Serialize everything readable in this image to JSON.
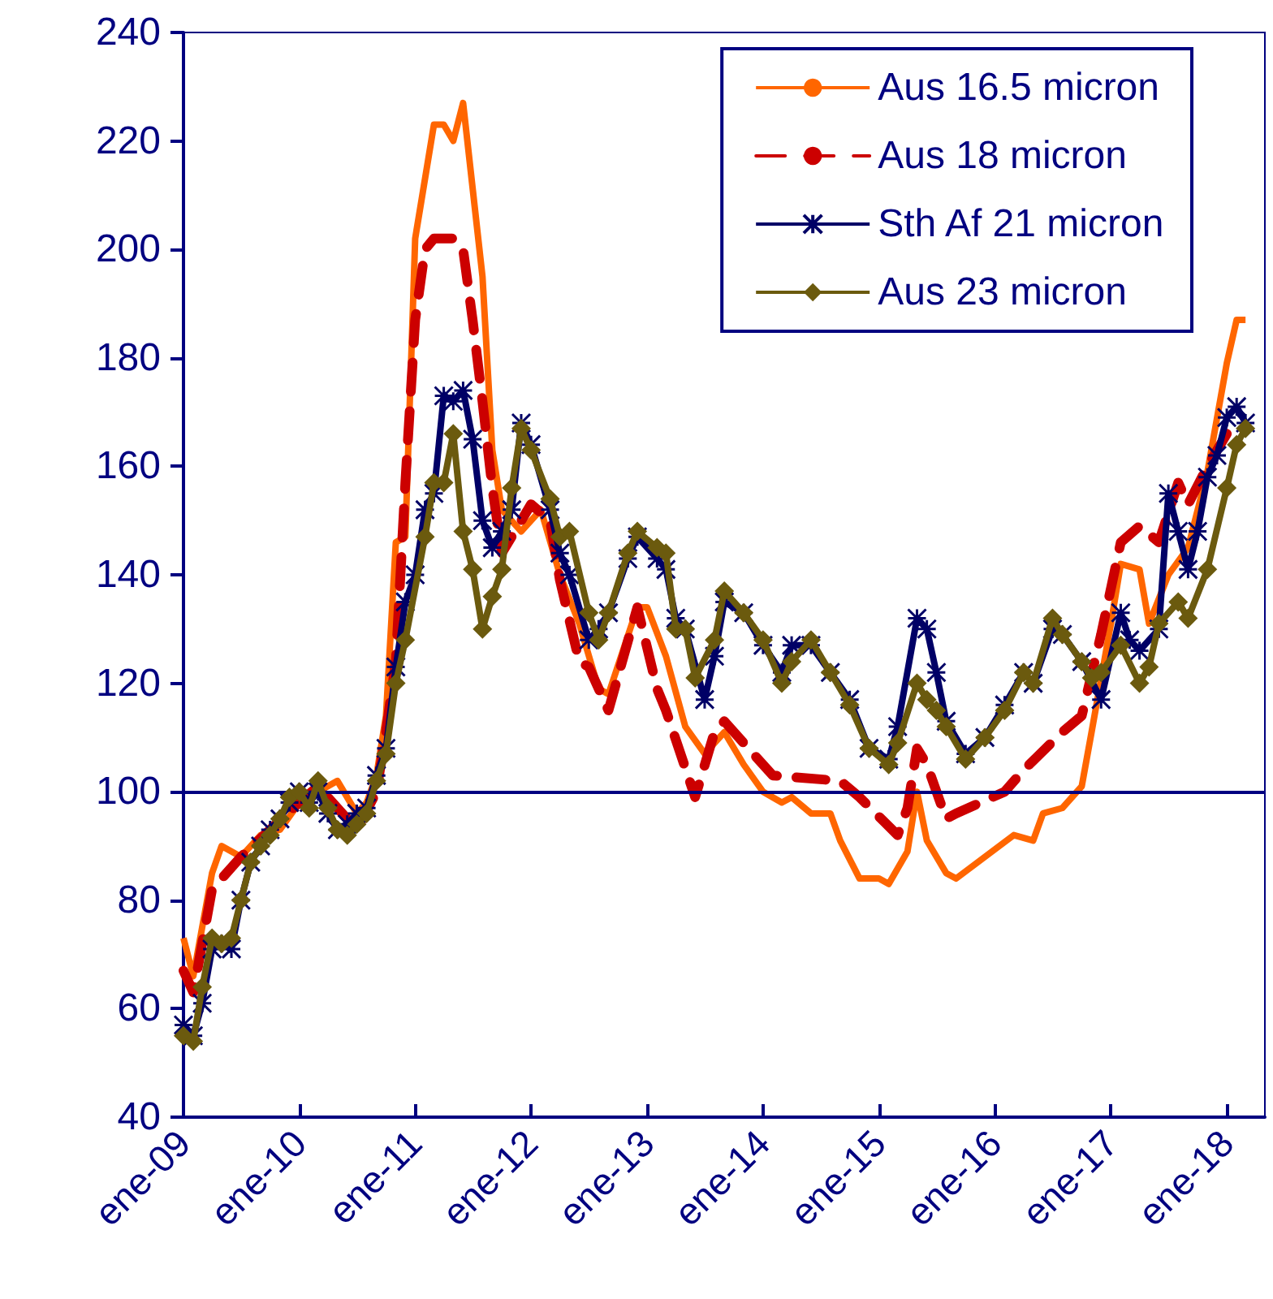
{
  "chart_data": {
    "type": "line",
    "legend": "top right",
    "grid": false,
    "xlim": [
      "2009-01",
      "2018-05"
    ],
    "xticks": [
      {
        "value": "2009-01",
        "label": "ene-09"
      },
      {
        "value": "2010-01",
        "label": "ene-10"
      },
      {
        "value": "2011-01",
        "label": "ene-11"
      },
      {
        "value": "2012-01",
        "label": "ene-12"
      },
      {
        "value": "2013-01",
        "label": "ene-13"
      },
      {
        "value": "2014-01",
        "label": "ene-14"
      },
      {
        "value": "2015-01",
        "label": "ene-15"
      },
      {
        "value": "2016-01",
        "label": "ene-16"
      },
      {
        "value": "2017-01",
        "label": "ene-17"
      },
      {
        "value": "2018-01",
        "label": "ene-18"
      }
    ],
    "ylim": [
      40,
      240
    ],
    "yticks": [
      40,
      60,
      80,
      100,
      120,
      140,
      160,
      180,
      200,
      220,
      240
    ],
    "ref_lines": [
      {
        "axis": "y",
        "value": 100,
        "color": "#000080"
      }
    ],
    "series": [
      {
        "name": "Aus 16.5 micron",
        "color": "#ff6600",
        "marker": "none",
        "line_style": "solid",
        "x": [
          "2009-01",
          "2009-02",
          "2009-04",
          "2009-05",
          "2009-07",
          "2009-09",
          "2009-11",
          "2010-01",
          "2010-03",
          "2010-05",
          "2010-07",
          "2010-08",
          "2010-09",
          "2010-10",
          "2010-11",
          "2010-12",
          "2011-01",
          "2011-03",
          "2011-04",
          "2011-05",
          "2011-06",
          "2011-08",
          "2011-09",
          "2011-10",
          "2011-12",
          "2012-02",
          "2012-04",
          "2012-06",
          "2012-08",
          "2012-09",
          "2012-12",
          "2013-01",
          "2013-03",
          "2013-05",
          "2013-07",
          "2013-09",
          "2013-11",
          "2014-01",
          "2014-03",
          "2014-04",
          "2014-06",
          "2014-08",
          "2014-09",
          "2014-11",
          "2015-01",
          "2015-02",
          "2015-04",
          "2015-05",
          "2015-06",
          "2015-08",
          "2015-09",
          "2015-12",
          "2016-03",
          "2016-05",
          "2016-06",
          "2016-08",
          "2016-10",
          "2016-11",
          "2017-01",
          "2017-02",
          "2017-04",
          "2017-05",
          "2017-07",
          "2017-09",
          "2017-11",
          "2018-01",
          "2018-02",
          "2018-03"
        ],
        "values": [
          73,
          66,
          85,
          90,
          88,
          92,
          93,
          98,
          100,
          102,
          96,
          98,
          103,
          114,
          146,
          147,
          202,
          223,
          223,
          220,
          227,
          195,
          163,
          152,
          148,
          152,
          140,
          131,
          119,
          118,
          134,
          134,
          125,
          112,
          107,
          111,
          105,
          100,
          98,
          99,
          96,
          96,
          91,
          84,
          84,
          83,
          89,
          100,
          91,
          85,
          84,
          88,
          92,
          91,
          96,
          97,
          101,
          111,
          131,
          142,
          141,
          131,
          140,
          145,
          159,
          179,
          187,
          187
        ]
      },
      {
        "name": "Aus 18 micron",
        "color": "#cc0000",
        "marker": "none",
        "line_style": "dashed",
        "x": [
          "2009-01",
          "2009-02",
          "2009-04",
          "2009-07",
          "2009-10",
          "2010-01",
          "2010-03",
          "2010-05",
          "2010-07",
          "2010-09",
          "2010-10",
          "2010-11",
          "2010-12",
          "2011-01",
          "2011-02",
          "2011-03",
          "2011-05",
          "2011-06",
          "2011-07",
          "2011-08",
          "2011-09",
          "2011-10",
          "2012-01",
          "2012-03",
          "2012-04",
          "2012-06",
          "2012-07",
          "2012-09",
          "2012-12",
          "2013-02",
          "2013-03",
          "2013-06",
          "2013-08",
          "2013-09",
          "2013-12",
          "2014-02",
          "2014-09",
          "2014-11",
          "2015-03",
          "2015-04",
          "2015-05",
          "2015-06",
          "2015-08",
          "2015-09",
          "2016-02",
          "2016-04",
          "2016-08",
          "2016-10",
          "2016-12",
          "2017-02",
          "2017-04",
          "2017-06",
          "2017-08",
          "2017-09",
          "2017-11",
          "2018-01"
        ],
        "values": [
          67,
          63,
          82,
          88,
          93,
          98,
          101,
          97,
          93,
          100,
          111,
          124,
          157,
          187,
          200,
          202,
          202,
          200,
          187,
          172,
          156,
          144,
          153,
          150,
          139,
          124,
          123,
          115,
          134,
          119,
          115,
          99,
          111,
          113,
          107,
          103,
          102,
          99,
          92,
          97,
          108,
          105,
          95,
          96,
          100,
          104,
          111,
          114,
          129,
          146,
          149,
          146,
          157,
          153,
          160,
          166
        ]
      },
      {
        "name": "Sth Af 21 micron",
        "color": "#000066",
        "marker": "cross",
        "line_style": "solid",
        "x": [
          "2009-01",
          "2009-02",
          "2009-03",
          "2009-04",
          "2009-05",
          "2009-06",
          "2009-07",
          "2009-08",
          "2009-09",
          "2009-10",
          "2009-11",
          "2009-12",
          "2010-01",
          "2010-02",
          "2010-03",
          "2010-04",
          "2010-05",
          "2010-06",
          "2010-07",
          "2010-08",
          "2010-09",
          "2010-10",
          "2010-11",
          "2010-12",
          "2011-01",
          "2011-02",
          "2011-03",
          "2011-04",
          "2011-05",
          "2011-06",
          "2011-07",
          "2011-08",
          "2011-09",
          "2011-10",
          "2011-11",
          "2011-12",
          "2012-01",
          "2012-03",
          "2012-04",
          "2012-05",
          "2012-07",
          "2012-08",
          "2012-09",
          "2012-11",
          "2012-12",
          "2013-02",
          "2013-03",
          "2013-04",
          "2013-05",
          "2013-07",
          "2013-08",
          "2013-09",
          "2013-11",
          "2014-01",
          "2014-03",
          "2014-04",
          "2014-06",
          "2014-08",
          "2014-10",
          "2014-12",
          "2015-02",
          "2015-03",
          "2015-05",
          "2015-06",
          "2015-07",
          "2015-08",
          "2015-10",
          "2015-12",
          "2016-02",
          "2016-04",
          "2016-05",
          "2016-07",
          "2016-08",
          "2016-10",
          "2016-12",
          "2017-02",
          "2017-03",
          "2017-04",
          "2017-06",
          "2017-07",
          "2017-08",
          "2017-09",
          "2017-10",
          "2017-11",
          "2017-12",
          "2018-01",
          "2018-02",
          "2018-03"
        ],
        "values": [
          57,
          55,
          61,
          71,
          72,
          71,
          80,
          87,
          90,
          93,
          95,
          98,
          100,
          98,
          100,
          96,
          93,
          94,
          96,
          97,
          103,
          108,
          123,
          135,
          140,
          152,
          155,
          173,
          172,
          174,
          165,
          150,
          145,
          148,
          152,
          168,
          164,
          152,
          144,
          140,
          128,
          130,
          133,
          143,
          147,
          143,
          141,
          132,
          130,
          117,
          125,
          135,
          133,
          127,
          122,
          127,
          127,
          122,
          117,
          108,
          106,
          112,
          132,
          130,
          122,
          113,
          107,
          110,
          116,
          122,
          120,
          130,
          129,
          124,
          117,
          133,
          128,
          126,
          130,
          155,
          148,
          141,
          148,
          158,
          162,
          169,
          171,
          168
        ]
      },
      {
        "name": "Aus 23 micron",
        "color": "#6b5a0e",
        "marker": "diamond",
        "line_style": "solid",
        "x": [
          "2009-01",
          "2009-02",
          "2009-03",
          "2009-04",
          "2009-05",
          "2009-06",
          "2009-07",
          "2009-08",
          "2009-09",
          "2009-10",
          "2009-11",
          "2009-12",
          "2010-01",
          "2010-02",
          "2010-03",
          "2010-04",
          "2010-05",
          "2010-06",
          "2010-07",
          "2010-08",
          "2010-09",
          "2010-10",
          "2010-11",
          "2010-12",
          "2011-02",
          "2011-03",
          "2011-04",
          "2011-05",
          "2011-06",
          "2011-07",
          "2011-08",
          "2011-09",
          "2011-10",
          "2011-11",
          "2011-12",
          "2012-01",
          "2012-03",
          "2012-04",
          "2012-05",
          "2012-07",
          "2012-08",
          "2012-09",
          "2012-11",
          "2012-12",
          "2013-02",
          "2013-03",
          "2013-04",
          "2013-05",
          "2013-06",
          "2013-08",
          "2013-09",
          "2013-11",
          "2014-01",
          "2014-03",
          "2014-04",
          "2014-06",
          "2014-08",
          "2014-10",
          "2014-12",
          "2015-02",
          "2015-03",
          "2015-05",
          "2015-06",
          "2015-07",
          "2015-08",
          "2015-10",
          "2015-12",
          "2016-02",
          "2016-04",
          "2016-05",
          "2016-07",
          "2016-08",
          "2016-10",
          "2016-11",
          "2016-12",
          "2017-02",
          "2017-04",
          "2017-05",
          "2017-06",
          "2017-08",
          "2017-09",
          "2017-11",
          "2018-01",
          "2018-02",
          "2018-03"
        ],
        "values": [
          55,
          54,
          64,
          73,
          72,
          73,
          80,
          87,
          90,
          92,
          95,
          99,
          100,
          97,
          102,
          97,
          93,
          92,
          94,
          96,
          102,
          107,
          120,
          128,
          147,
          157,
          157,
          166,
          148,
          141,
          130,
          136,
          141,
          156,
          167,
          163,
          154,
          147,
          148,
          133,
          128,
          133,
          144,
          148,
          145,
          144,
          130,
          130,
          121,
          128,
          137,
          133,
          128,
          120,
          124,
          128,
          122,
          116,
          108,
          105,
          109,
          120,
          117,
          115,
          112,
          106,
          110,
          115,
          122,
          120,
          132,
          129,
          124,
          121,
          122,
          127,
          120,
          123,
          131,
          135,
          132,
          141,
          156,
          164,
          167
        ]
      }
    ]
  }
}
